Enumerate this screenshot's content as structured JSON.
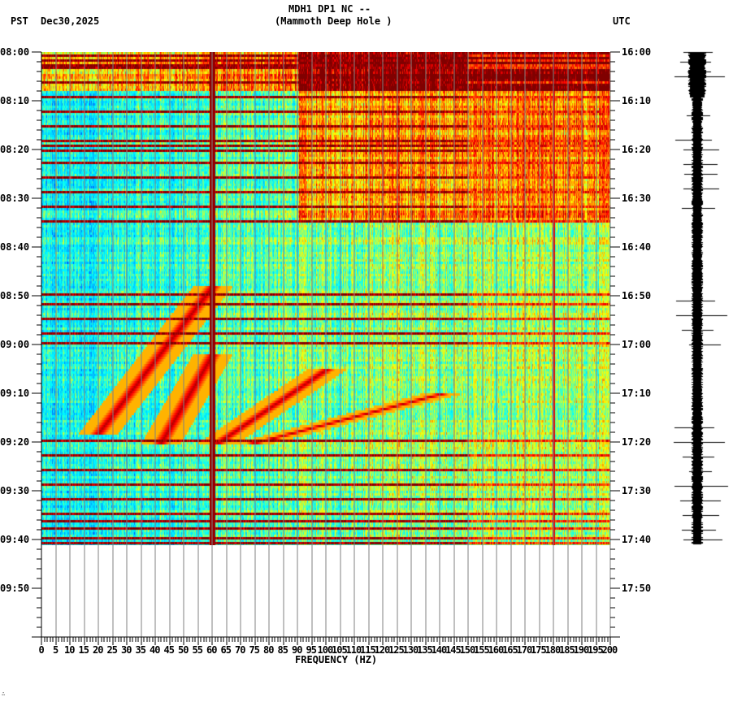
{
  "header": {
    "title_line1": "MDH1 DP1 NC --",
    "title_line2": "(Mammoth Deep Hole )",
    "left_timezone": "PST",
    "date": "Dec30,2025",
    "right_timezone": "UTC"
  },
  "footer": {
    "corner_mark": "∴"
  },
  "chart_data": {
    "type": "heatmap",
    "title": "MDH1 DP1 NC -- (Mammoth Deep Hole )",
    "subtitle": "Dec30,2025",
    "xlabel": "FREQUENCY (HZ)",
    "ylabel_left": "PST",
    "ylabel_right": "UTC",
    "xlim": [
      0,
      200
    ],
    "x_ticks": [
      "0",
      "5",
      "10",
      "15",
      "20",
      "25",
      "30",
      "35",
      "40",
      "45",
      "50",
      "55",
      "60",
      "65",
      "70",
      "75",
      "80",
      "85",
      "90",
      "95",
      "100",
      "105",
      "110",
      "115",
      "120",
      "125",
      "130",
      "135",
      "140",
      "145",
      "150",
      "155",
      "160",
      "165",
      "170",
      "175",
      "180",
      "185",
      "190",
      "195",
      "200"
    ],
    "y_ticks_left": [
      "08:00",
      "08:10",
      "08:20",
      "08:30",
      "08:40",
      "08:50",
      "09:00",
      "09:10",
      "09:20",
      "09:30",
      "09:40",
      "09:50"
    ],
    "y_ticks_right": [
      "16:00",
      "16:10",
      "16:20",
      "16:30",
      "16:40",
      "16:50",
      "17:00",
      "17:10",
      "17:20",
      "17:30",
      "17:40",
      "17:50"
    ],
    "time_range_pst": [
      "08:00",
      "10:00"
    ],
    "data_end_pst": "09:41",
    "grid": "vertical lines every 5 Hz",
    "colormap": [
      "#0000c8",
      "#0050ff",
      "#00c8ff",
      "#00ffff",
      "#80ff80",
      "#ffff00",
      "#ff8000",
      "#ff0000",
      "#800000"
    ],
    "persistent_lines_hz": [
      60,
      180
    ],
    "broadband_event_minutes": [
      0.5,
      1.5,
      2.5,
      3,
      6,
      9,
      12,
      15,
      18,
      19,
      20,
      22.5,
      25.5,
      28.5,
      31.5,
      34.5,
      49.5,
      51.5,
      54.5,
      57.5,
      59.5,
      79.5,
      82.5,
      85.5,
      88.5,
      91.5,
      94.5,
      96,
      97.5,
      99.5,
      100.5
    ],
    "gliding_tones": [
      {
        "name": "upper glide A",
        "start_min": 48,
        "end_min": 78,
        "start_hz": 60,
        "end_hz": 20
      },
      {
        "name": "upper glide B",
        "start_min": 62,
        "end_min": 80,
        "start_hz": 60,
        "end_hz": 42
      },
      {
        "name": "upper glide C",
        "start_min": 65,
        "end_min": 80,
        "start_hz": 100,
        "end_hz": 62
      },
      {
        "name": "upper glide D",
        "start_min": 70,
        "end_min": 80,
        "start_hz": 140,
        "end_hz": 75
      }
    ],
    "seismogram_trace": {
      "label": "vertical waveform trace",
      "spikes_at_minutes": [
        0,
        2,
        4,
        5,
        13,
        18,
        20,
        23,
        25,
        28,
        32,
        51,
        54,
        57,
        60,
        77,
        80,
        83,
        86,
        89,
        92,
        95,
        98,
        100
      ]
    }
  }
}
